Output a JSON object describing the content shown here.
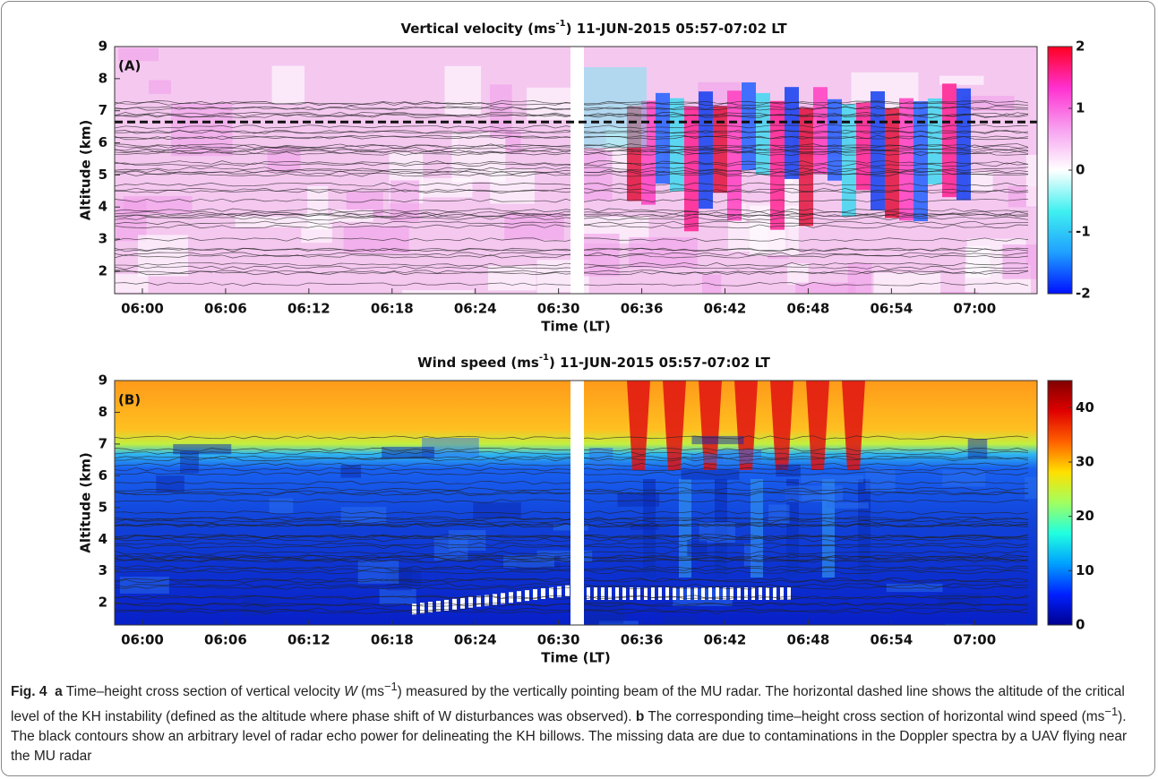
{
  "chart_data": [
    {
      "type": "heatmap",
      "title": [
        "Vertical velocity (ms",
        "-1",
        ") 11-JUN-2015  05:57-07:02 LT"
      ],
      "panel_label": "(A)",
      "xlabel": "Time (LT)",
      "ylabel": "Altitude (km)",
      "xlim": [
        358,
        424.5
      ],
      "xticks": [
        {
          "value": 360,
          "label": "06:00"
        },
        {
          "value": 366,
          "label": "06:06"
        },
        {
          "value": 372,
          "label": "06:12"
        },
        {
          "value": 378,
          "label": "06:18"
        },
        {
          "value": 384,
          "label": "06:24"
        },
        {
          "value": 390,
          "label": "06:30"
        },
        {
          "value": 396,
          "label": "06:36"
        },
        {
          "value": 402,
          "label": "06:42"
        },
        {
          "value": 408,
          "label": "06:48"
        },
        {
          "value": 414,
          "label": "06:54"
        },
        {
          "value": 420,
          "label": "07:00"
        }
      ],
      "ylim": [
        1.3,
        9
      ],
      "yticks": [
        2,
        3,
        4,
        5,
        6,
        7,
        8,
        9
      ],
      "reference_line": 6.65,
      "colorbar": {
        "lim": [
          -2,
          2
        ],
        "ticks": [
          -2,
          -1,
          0,
          1,
          2
        ],
        "colors": [
          "#0010ff",
          "#1fa0ff",
          "#40f0f0",
          "#ffffff",
          "#f7a0f0",
          "#ff30d0",
          "#ff0020"
        ]
      }
    },
    {
      "type": "heatmap",
      "title": [
        "Wind speed (ms",
        "-1",
        ") 11-JUN-2015  05:57-07:02 LT"
      ],
      "panel_label": "(B)",
      "xlabel": "Time (LT)",
      "ylabel": "Altitude (km)",
      "xlim": [
        358,
        424.5
      ],
      "xticks": [
        {
          "value": 360,
          "label": "06:00"
        },
        {
          "value": 366,
          "label": "06:06"
        },
        {
          "value": 372,
          "label": "06:12"
        },
        {
          "value": 378,
          "label": "06:18"
        },
        {
          "value": 384,
          "label": "06:24"
        },
        {
          "value": 390,
          "label": "06:30"
        },
        {
          "value": 396,
          "label": "06:36"
        },
        {
          "value": 402,
          "label": "06:42"
        },
        {
          "value": 408,
          "label": "06:48"
        },
        {
          "value": 414,
          "label": "06:54"
        },
        {
          "value": 420,
          "label": "07:00"
        }
      ],
      "ylim": [
        1.3,
        9
      ],
      "yticks": [
        2,
        3,
        4,
        5,
        6,
        7,
        8,
        9
      ],
      "colorbar": {
        "lim": [
          0,
          45
        ],
        "ticks": [
          0,
          10,
          20,
          30,
          40
        ],
        "colors": [
          "#00008f",
          "#0020ff",
          "#00a0ff",
          "#20ffe0",
          "#a0ff60",
          "#ffe000",
          "#ff6000",
          "#e00000",
          "#800000"
        ]
      }
    }
  ],
  "caption": [
    "Fig. 4",
    "a",
    " Time–height cross section of vertical velocity ",
    "W",
    " (ms",
    "−1",
    ") measured by the vertically pointing beam of the MU radar. The horizontal dashed line shows the altitude of the critical level of the KH instability (defined as the altitude where phase shift of W disturbances was observed). ",
    "b",
    " The corresponding time–height cross section of horizontal wind speed (ms",
    "−1",
    "). The black contours show an arbitrary level of radar echo power for delineating the KH billows. The missing data are due to contaminations in the Doppler spectra by a UAV flying near the MU radar"
  ]
}
